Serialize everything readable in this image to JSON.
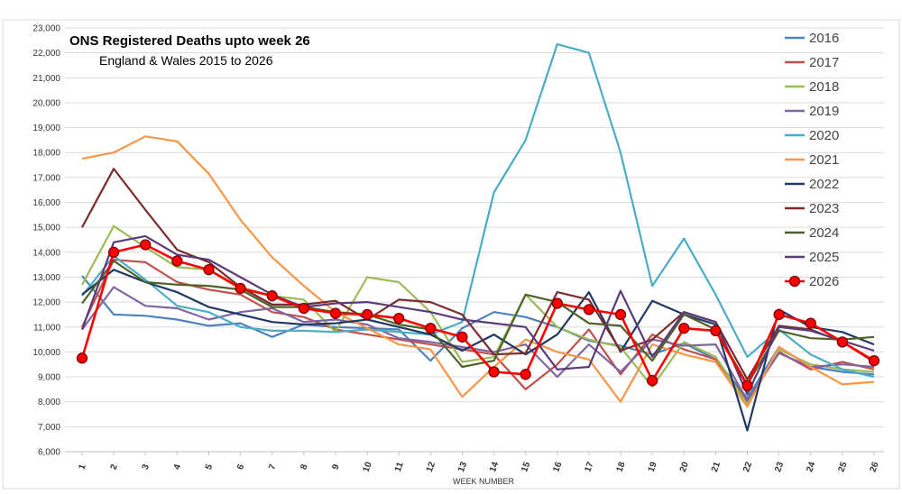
{
  "chart_data": {
    "type": "line",
    "title": "ONS Registered Deaths upto week  26",
    "subtitle": "England & Wales   2015 to 2026",
    "xlabel": "WEEK NUMBER",
    "ylabel": "",
    "ylim": [
      6000,
      23000
    ],
    "y_ticks": [
      "6,000",
      "7,000",
      "8,000",
      "9,000",
      "10,000",
      "11,000",
      "12,000",
      "13,000",
      "14,000",
      "15,000",
      "16,000",
      "17,000",
      "18,000",
      "19,000",
      "20,000",
      "21,000",
      "22,000",
      "23,000"
    ],
    "x": [
      "1",
      "2",
      "3",
      "4",
      "5",
      "6",
      "7",
      "8",
      "9",
      "10",
      "11",
      "12",
      "13",
      "14",
      "15",
      "16",
      "17",
      "18",
      "19",
      "20",
      "21",
      "22",
      "23",
      "24",
      "25",
      "26"
    ],
    "grid": "horizontal",
    "legend_position": "right",
    "series": [
      {
        "name": "2016",
        "color": "#4f81bd",
        "marker": false,
        "values": [
          13050,
          11500,
          11450,
          11300,
          11050,
          11150,
          10600,
          11100,
          11000,
          10950,
          10900,
          9650,
          10950,
          11600,
          11400,
          11000,
          10450,
          10250,
          9900,
          10350,
          9700,
          8150,
          10200,
          9400,
          9200,
          9100
        ]
      },
      {
        "name": "2017",
        "color": "#c0504d",
        "marker": false,
        "values": [
          11000,
          13700,
          13600,
          12800,
          12500,
          12300,
          11600,
          11400,
          10900,
          10700,
          10500,
          10300,
          10100,
          9900,
          8500,
          9500,
          10900,
          9100,
          10700,
          10100,
          9700,
          8000,
          10000,
          9300,
          9600,
          9300
        ]
      },
      {
        "name": "2018",
        "color": "#9bbb59",
        "marker": false,
        "values": [
          12700,
          15050,
          14200,
          13400,
          13300,
          12600,
          12250,
          12100,
          10800,
          13000,
          12800,
          11600,
          9600,
          9800,
          12300,
          11000,
          10500,
          10200,
          8600,
          10400,
          9800,
          7900,
          10100,
          9500,
          9300,
          9200
        ]
      },
      {
        "name": "2019",
        "color": "#8064a2",
        "marker": false,
        "values": [
          10900,
          12600,
          11850,
          11750,
          11300,
          11600,
          11750,
          11200,
          11300,
          11100,
          10550,
          10400,
          10200,
          10000,
          10300,
          9000,
          10300,
          9200,
          10500,
          10250,
          10300,
          8050,
          9950,
          9400,
          9500,
          9400
        ]
      },
      {
        "name": "2020",
        "color": "#4bacc6",
        "marker": false,
        "values": [
          12250,
          13850,
          12900,
          11850,
          11600,
          11000,
          10850,
          10850,
          10800,
          10900,
          10800,
          10700,
          11200,
          16400,
          18500,
          22350,
          22000,
          18000,
          12650,
          14550,
          12300,
          9800,
          10900,
          9900,
          9300,
          9000
        ]
      },
      {
        "name": "2021",
        "color": "#f79646",
        "marker": false,
        "values": [
          17750,
          18000,
          18650,
          18450,
          17150,
          15300,
          13800,
          12650,
          11600,
          10950,
          10300,
          10100,
          8200,
          9400,
          10500,
          10000,
          9700,
          8000,
          10300,
          9900,
          9600,
          7800,
          10200,
          9400,
          8700,
          8800
        ]
      },
      {
        "name": "2022",
        "color": "#1f3864",
        "marker": false,
        "values": [
          12300,
          13300,
          12800,
          12400,
          11800,
          11500,
          11200,
          11100,
          11150,
          11300,
          11000,
          10700,
          10050,
          10700,
          9900,
          10700,
          12400,
          10000,
          12050,
          11500,
          11100,
          6850,
          11700,
          11000,
          10800,
          10300
        ]
      },
      {
        "name": "2023",
        "color": "#7b2c2c",
        "marker": false,
        "values": [
          15000,
          17350,
          15700,
          14100,
          13600,
          12600,
          11900,
          11900,
          12050,
          11300,
          12100,
          12000,
          11500,
          9900,
          9950,
          12400,
          12100,
          10050,
          10500,
          11600,
          11200,
          8900,
          11050,
          10900,
          10400,
          9600
        ]
      },
      {
        "name": "2024",
        "color": "#4f6228",
        "marker": false,
        "values": [
          11950,
          13650,
          12800,
          12700,
          12650,
          12500,
          11800,
          11800,
          11600,
          11500,
          11100,
          10900,
          9400,
          9650,
          12300,
          12000,
          11150,
          11050,
          9650,
          11500,
          10900,
          8700,
          10850,
          10550,
          10500,
          10600
        ]
      },
      {
        "name": "2025",
        "color": "#5a3b7a",
        "marker": false,
        "values": [
          10900,
          14400,
          14650,
          13900,
          13700,
          13000,
          12300,
          11800,
          11950,
          12000,
          11800,
          11600,
          11300,
          11150,
          11000,
          9300,
          9400,
          12450,
          9800,
          11600,
          11200,
          8300,
          11000,
          10850,
          10450,
          10050
        ]
      },
      {
        "name": "2026",
        "color": "#ff0000",
        "marker": true,
        "values": [
          9750,
          14000,
          14300,
          13650,
          13300,
          12550,
          12250,
          11750,
          11550,
          11500,
          11350,
          10950,
          10600,
          9200,
          9100,
          11950,
          11700,
          11500,
          8850,
          10950,
          10850,
          8650,
          11500,
          11150,
          10400,
          9650
        ]
      }
    ]
  }
}
